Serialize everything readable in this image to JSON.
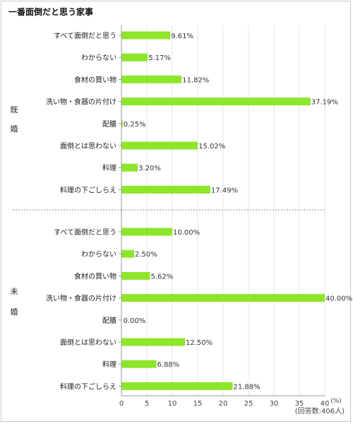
{
  "chart_data": {
    "type": "bar",
    "orientation": "horizontal",
    "title": "一番面倒だと思う家事",
    "unit": "(%)",
    "note": "(回答数:406人)",
    "xlim": [
      0,
      40
    ],
    "xticks": [
      "0",
      "5",
      "10",
      "15",
      "20",
      "25",
      "30",
      "35",
      "40"
    ],
    "grid": true,
    "bar_color": "#8ee62b",
    "categories": [
      "すべて面倒だと思う",
      "わからない",
      "食材の買い物",
      "洗い物・食器の片付け",
      "配膳",
      "面倒とは思わない",
      "料理",
      "料理の下ごしらえ"
    ],
    "groups": [
      {
        "name": "既婚",
        "values": [
          9.61,
          5.17,
          11.82,
          37.19,
          0.25,
          15.02,
          3.2,
          17.49
        ],
        "labels": [
          "9.61%",
          "5.17%",
          "11.82%",
          "37.19%",
          "0.25%",
          "15.02%",
          "3.20%",
          "17.49%"
        ]
      },
      {
        "name": "未婚",
        "values": [
          10.0,
          2.5,
          5.62,
          40.0,
          0.0,
          12.5,
          6.88,
          21.88
        ],
        "labels": [
          "10.00%",
          "2.50%",
          "5.62%",
          "40.00%",
          "0.00%",
          "12.50%",
          "6.88%",
          "21.88%"
        ]
      }
    ]
  }
}
